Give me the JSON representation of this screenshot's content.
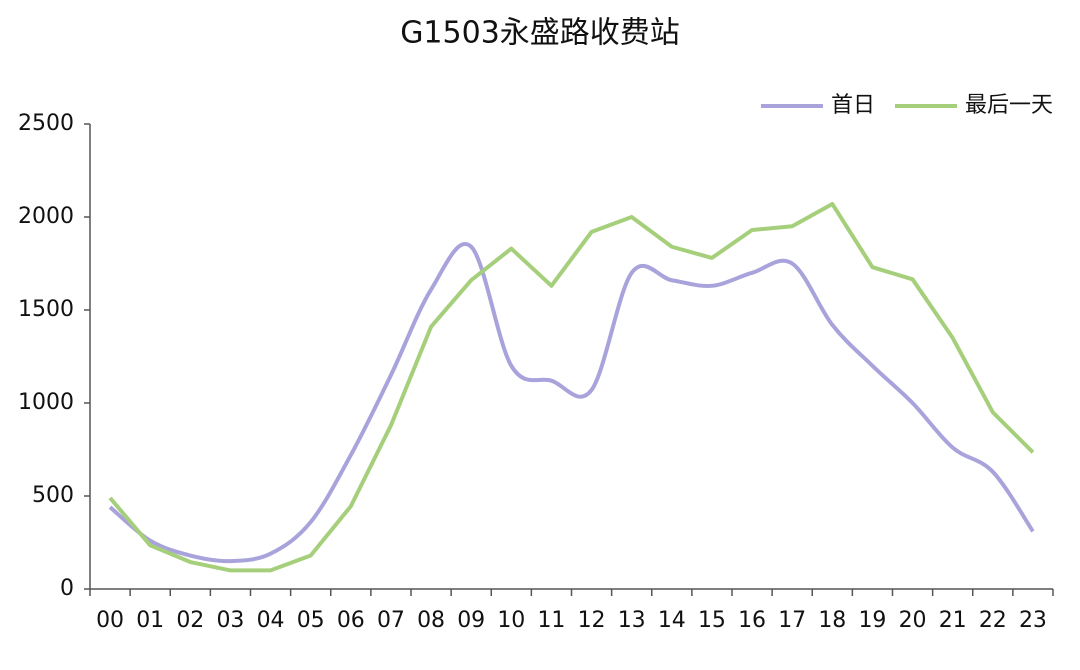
{
  "chart_data": {
    "type": "line",
    "title": "G1503永盛路收费站",
    "categories": [
      "00",
      "01",
      "02",
      "03",
      "04",
      "05",
      "06",
      "07",
      "08",
      "09",
      "10",
      "11",
      "12",
      "13",
      "14",
      "15",
      "16",
      "17",
      "18",
      "19",
      "20",
      "21",
      "22",
      "23"
    ],
    "series": [
      {
        "name": "首日",
        "color": "#a9a3dc",
        "smooth": true,
        "values": [
          440,
          260,
          180,
          150,
          190,
          360,
          720,
          1150,
          1610,
          1840,
          1200,
          1120,
          1070,
          1700,
          1660,
          1630,
          1700,
          1750,
          1420,
          1200,
          1000,
          760,
          630,
          310
        ]
      },
      {
        "name": "最后一天",
        "color": "#a6cf7c",
        "smooth": false,
        "values": [
          490,
          235,
          145,
          100,
          100,
          180,
          445,
          880,
          1410,
          1660,
          1830,
          1630,
          1920,
          2000,
          1840,
          1780,
          1930,
          1950,
          2070,
          1730,
          1665,
          1350,
          950,
          735
        ]
      }
    ],
    "ylim": [
      0,
      2500
    ],
    "yticks": [
      0,
      500,
      1000,
      1500,
      2000,
      2500
    ],
    "grid": false,
    "legend": "top-right"
  }
}
